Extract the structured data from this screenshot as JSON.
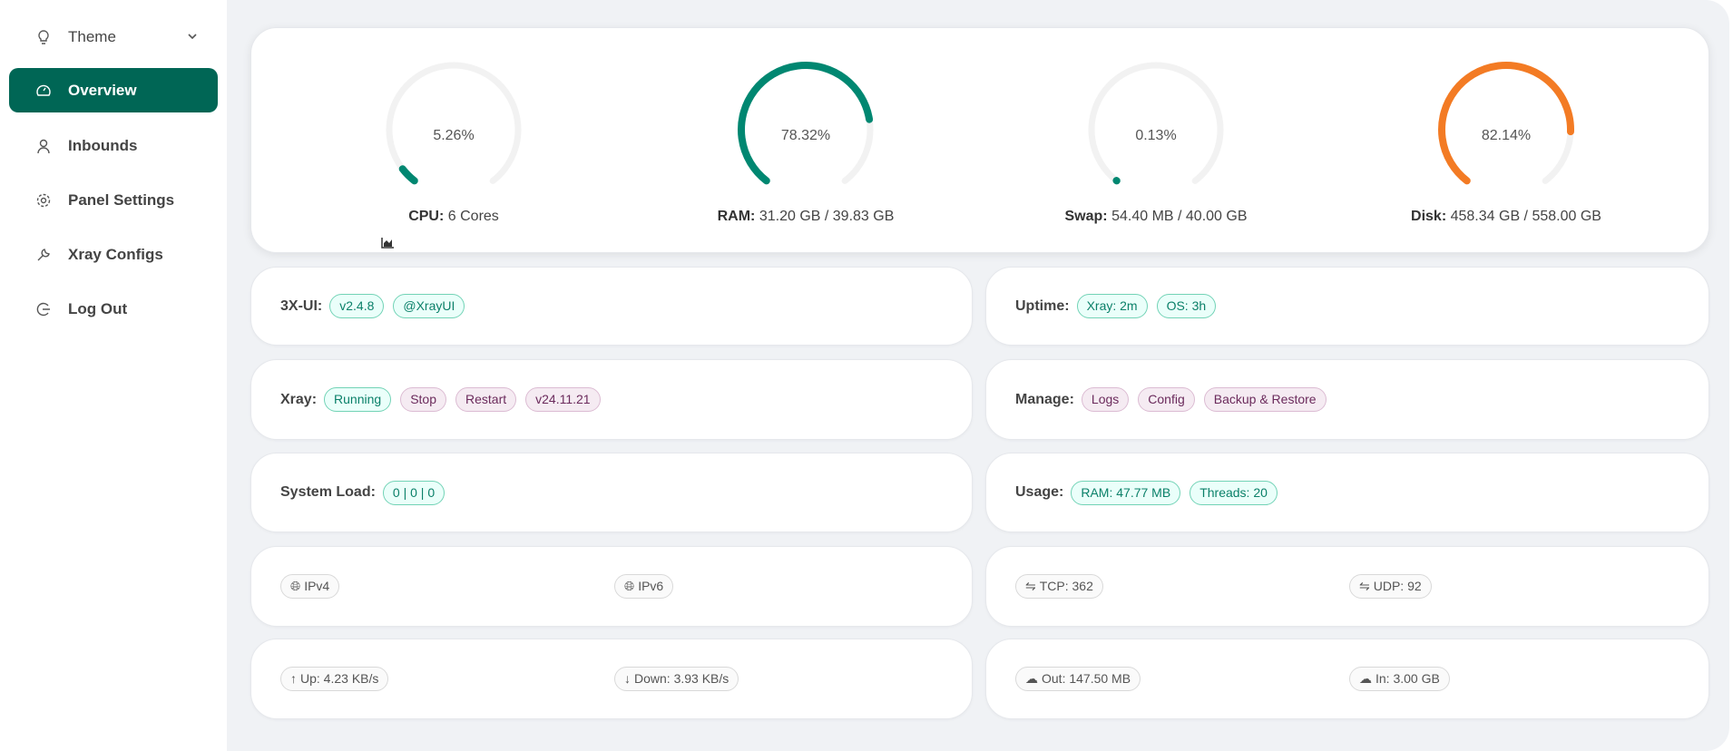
{
  "sidebar": {
    "items": [
      {
        "label": "Theme",
        "icon": "bulb-icon"
      },
      {
        "label": "Overview",
        "icon": "dashboard-icon",
        "active": true
      },
      {
        "label": "Inbounds",
        "icon": "user-icon"
      },
      {
        "label": "Panel Settings",
        "icon": "gear-icon"
      },
      {
        "label": "Xray Configs",
        "icon": "wrench-icon"
      },
      {
        "label": "Log Out",
        "icon": "logout-icon"
      }
    ]
  },
  "colors": {
    "accent": "#006655",
    "teal": "#008771",
    "orange": "#f37b24",
    "track": "#f2f2f2"
  },
  "gauges": [
    {
      "percent": 5.26,
      "percent_text": "5.26%",
      "label": "CPU:",
      "value": "6 Cores",
      "color": "#008771",
      "icon": "area-chart-icon"
    },
    {
      "percent": 78.32,
      "percent_text": "78.32%",
      "label": "RAM:",
      "value": "31.20 GB / 39.83 GB",
      "color": "#008771"
    },
    {
      "percent": 0.13,
      "percent_text": "0.13%",
      "label": "Swap:",
      "value": "54.40 MB / 40.00 GB",
      "color": "#008771"
    },
    {
      "percent": 82.14,
      "percent_text": "82.14%",
      "label": "Disk:",
      "value": "458.34 GB / 558.00 GB",
      "color": "#f37b24"
    }
  ],
  "info": {
    "xui": {
      "label": "3X-UI:",
      "tags": [
        "v2.4.8",
        "@XrayUI"
      ]
    },
    "uptime": {
      "label": "Uptime:",
      "tags": [
        "Xray: 2m",
        "OS: 3h"
      ]
    },
    "xray": {
      "label": "Xray:",
      "status": "Running",
      "actions": [
        "Stop",
        "Restart"
      ],
      "version": "v24.11.21"
    },
    "manage": {
      "label": "Manage:",
      "actions": [
        "Logs",
        "Config",
        "Backup & Restore"
      ]
    },
    "load": {
      "label": "System Load:",
      "value": "0 | 0 | 0"
    },
    "usage": {
      "label": "Usage:",
      "tags": [
        "RAM: 47.77 MB",
        "Threads: 20"
      ]
    },
    "ip": [
      "IPv4",
      "IPv6"
    ],
    "conn": [
      "TCP: 362",
      "UDP: 92"
    ],
    "speed": [
      "Up: 4.23 KB/s",
      "Down: 3.93 KB/s"
    ],
    "traffic": [
      "Out: 147.50 MB",
      "In: 3.00 GB"
    ]
  }
}
